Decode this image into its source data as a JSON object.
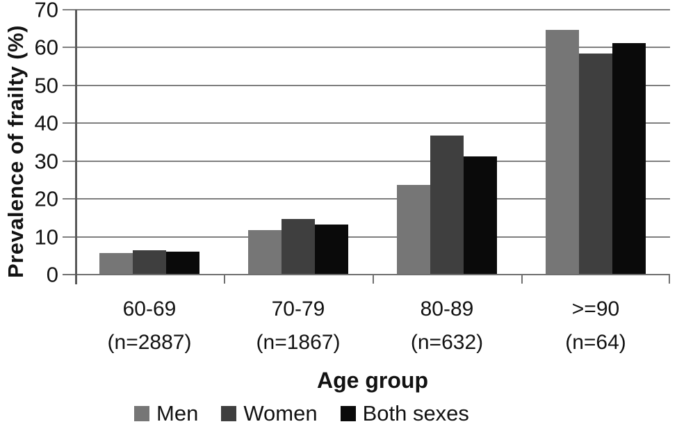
{
  "chart_data": {
    "type": "bar",
    "title": "",
    "ylabel": "Prevalence of frailty (%)",
    "xlabel": "Age group",
    "categories": [
      "60-69",
      "70-79",
      "80-89",
      ">=90"
    ],
    "category_counts": [
      "(n=2887)",
      "(n=1867)",
      "(n=632)",
      "(n=64)"
    ],
    "series": [
      {
        "name": "Men",
        "color": "#767676",
        "values": [
          5.5,
          11.5,
          23.5,
          64.5
        ]
      },
      {
        "name": "Women",
        "color": "#3f3f3f",
        "values": [
          6.2,
          14.5,
          36.5,
          58.2
        ]
      },
      {
        "name": "Both sexes",
        "color": "#0a0a0a",
        "values": [
          5.9,
          13.0,
          31.0,
          61.0
        ]
      }
    ],
    "ylim": [
      0,
      70
    ],
    "yticks": [
      0,
      10,
      20,
      30,
      40,
      50,
      60,
      70
    ],
    "grid": true,
    "legend_position": "bottom",
    "legend_labels": [
      "Men",
      "Women",
      "Both sexes"
    ]
  },
  "colors": {
    "gridline": "#7e7e7e",
    "axis": "#5a5a5a",
    "text": "#121212",
    "background": "#ffffff"
  }
}
